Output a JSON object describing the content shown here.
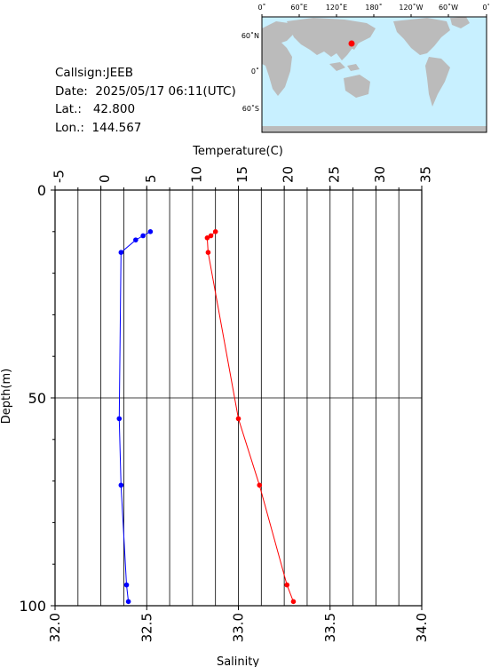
{
  "station": {
    "callsign_label": "Callsign:",
    "callsign": "JEEB",
    "date_label": "Date:",
    "date": "2025/05/17 06:11(UTC)",
    "lat_label": "Lat.:",
    "lat": "42.800",
    "lon_label": "Lon.:",
    "lon": "144.567"
  },
  "map": {
    "top_labels": [
      "0˚",
      "60˚E",
      "120˚E",
      "180˚",
      "120˚W",
      "60˚W",
      "0˚"
    ],
    "left_labels": [
      "60˚N",
      "0˚",
      "60˚S"
    ],
    "ocean_color": "#c8f0ff",
    "land_color": "#bbbbbb",
    "marker_color": "#ff0000"
  },
  "chart_data": {
    "type": "line",
    "y_axis": {
      "label": "Depth(m)",
      "ticks": [
        "0",
        "50",
        "100"
      ],
      "range": [
        0,
        100
      ],
      "inverted": true
    },
    "top_axis": {
      "label": "Temperature(C)",
      "ticks": [
        "-5",
        "0",
        "5",
        "10",
        "15",
        "20",
        "25",
        "30",
        "35"
      ],
      "range": [
        -5,
        35
      ]
    },
    "bottom_axis": {
      "label": "Salinity",
      "ticks": [
        "32.0",
        "32.5",
        "33.0",
        "33.5",
        "34.0"
      ],
      "range": [
        32.0,
        34.0
      ]
    },
    "grid": true,
    "series": [
      {
        "axis": "top",
        "color": "#ff0000",
        "points": [
          {
            "depth": 10,
            "value": 12.5
          },
          {
            "depth": 11,
            "value": 12.0
          },
          {
            "depth": 11.5,
            "value": 11.6
          },
          {
            "depth": 15,
            "value": 11.7
          },
          {
            "depth": 55,
            "value": 15.0
          },
          {
            "depth": 71,
            "value": 17.3
          },
          {
            "depth": 95,
            "value": 20.3
          },
          {
            "depth": 99,
            "value": 21.0
          }
        ]
      },
      {
        "axis": "bottom",
        "color": "#0000ff",
        "points": [
          {
            "depth": 10,
            "value": 32.52
          },
          {
            "depth": 11,
            "value": 32.48
          },
          {
            "depth": 12,
            "value": 32.44
          },
          {
            "depth": 15,
            "value": 32.36
          },
          {
            "depth": 55,
            "value": 32.35
          },
          {
            "depth": 71,
            "value": 32.36
          },
          {
            "depth": 95,
            "value": 32.39
          },
          {
            "depth": 99,
            "value": 32.4
          }
        ]
      }
    ]
  }
}
